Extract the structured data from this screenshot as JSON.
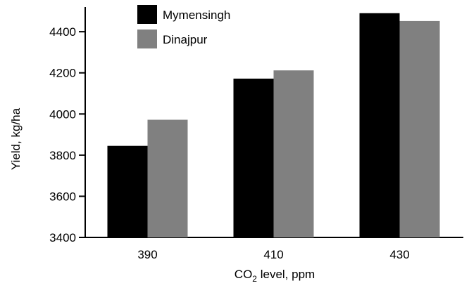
{
  "chart_data": {
    "type": "bar",
    "categories": [
      "390",
      "410",
      "430"
    ],
    "series": [
      {
        "name": "Mymensingh",
        "values": [
          3845,
          4172,
          4490
        ],
        "color": "#000000"
      },
      {
        "name": "Dinajpur",
        "values": [
          3972,
          4212,
          4452
        ],
        "color": "#808080"
      }
    ],
    "xlabel": {
      "prefix": "CO",
      "subscript": "2",
      "suffix": " level, ppm"
    },
    "ylabel": "Yield, kg/ha",
    "ylim": [
      3400,
      4520
    ],
    "yticks": [
      3400,
      3600,
      3800,
      4000,
      4200,
      4400
    ],
    "grid": false,
    "legend": "top-left"
  }
}
